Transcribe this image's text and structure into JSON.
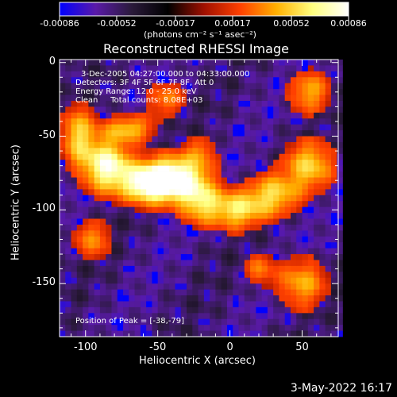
{
  "chart_data": {
    "type": "heatmap",
    "title": "Reconstructed RHESSI Image",
    "xlabel": "Heliocentric X (arcsec)",
    "ylabel": "Heliocentric Y (arcsec)",
    "xlim": [
      -118,
      75
    ],
    "ylim": [
      -186,
      2
    ],
    "x_ticks": [
      "-100",
      "-50",
      "0",
      "50"
    ],
    "x_tick_values": [
      -100,
      -50,
      0,
      50
    ],
    "y_ticks": [
      "0",
      "-50",
      "-100",
      "-150"
    ],
    "y_tick_values": [
      0,
      -50,
      -100,
      -150
    ],
    "colorbar": {
      "ticks": [
        "-0.00086",
        "-0.00052",
        "-0.00017",
        "0.00017",
        "0.00052",
        "0.00086"
      ],
      "tick_values": [
        -0.00086,
        -0.00052,
        -0.00017,
        0.00017,
        0.00052,
        0.00086
      ],
      "range": [
        -0.00086,
        0.00086
      ],
      "unit_label": "(photons cm⁻² s⁻¹ asec⁻²)",
      "colors": [
        "#0000ff",
        "#5a1aa8",
        "#2a1a3a",
        "#000000",
        "#a01000",
        "#ff4000",
        "#ffb000",
        "#ffff80",
        "#ffffff"
      ]
    },
    "annotations": {
      "time_range": "3-Dec-2005 04:27:00.000 to 04:33:00.000",
      "detectors": "Detectors: 3F 4F 5F 6F 7F 8F, Att 0",
      "energy": "Energy Range: 12.0 - 25.0 keV",
      "method": "Clean     Total counts: 8.08E+03",
      "peak": "Position of Peak = [-38,-79]"
    },
    "peak": [
      -38,
      -79
    ],
    "emission_sources": [
      {
        "x": -38,
        "y": -79,
        "amp": 1.0,
        "sx": 14,
        "sy": 10
      },
      {
        "x": -58,
        "y": -82,
        "amp": 0.8,
        "sx": 12,
        "sy": 9
      },
      {
        "x": -85,
        "y": -70,
        "amp": 0.85,
        "sx": 11,
        "sy": 12
      },
      {
        "x": -105,
        "y": -50,
        "amp": 0.55,
        "sx": 8,
        "sy": 14
      },
      {
        "x": -70,
        "y": -45,
        "amp": 0.5,
        "sx": 12,
        "sy": 6
      },
      {
        "x": -20,
        "y": -95,
        "amp": 0.55,
        "sx": 10,
        "sy": 10
      },
      {
        "x": 5,
        "y": -100,
        "amp": 0.6,
        "sx": 12,
        "sy": 9
      },
      {
        "x": 30,
        "y": -90,
        "amp": 0.55,
        "sx": 12,
        "sy": 10
      },
      {
        "x": 55,
        "y": -70,
        "amp": 0.55,
        "sx": 12,
        "sy": 12
      },
      {
        "x": 55,
        "y": -20,
        "amp": 0.45,
        "sx": 10,
        "sy": 10
      },
      {
        "x": -45,
        "y": -25,
        "amp": 0.35,
        "sx": 10,
        "sy": 8
      },
      {
        "x": -95,
        "y": -120,
        "amp": 0.35,
        "sx": 10,
        "sy": 10
      },
      {
        "x": 50,
        "y": -150,
        "amp": 0.45,
        "sx": 12,
        "sy": 12
      },
      {
        "x": 20,
        "y": -140,
        "amp": 0.3,
        "sx": 8,
        "sy": 8
      },
      {
        "x": -20,
        "y": -60,
        "amp": 0.3,
        "sx": 8,
        "sy": 8
      }
    ]
  },
  "footer": {
    "date": "3-May-2022 16:17"
  }
}
